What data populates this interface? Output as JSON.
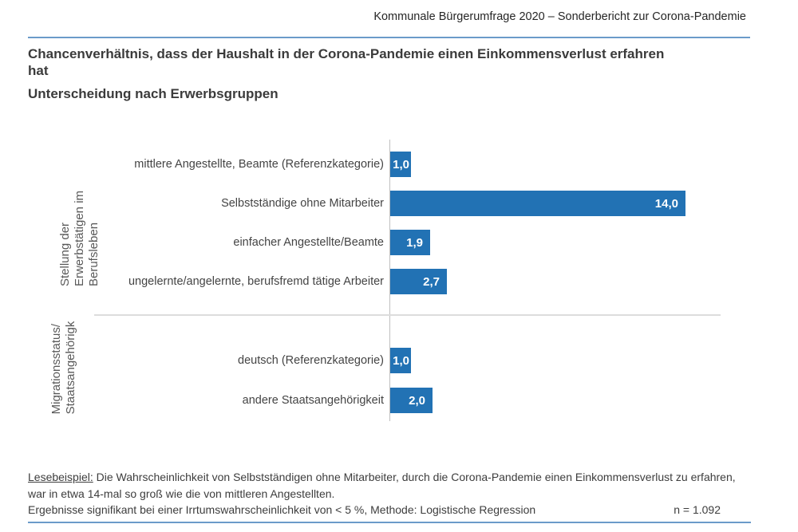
{
  "header": {
    "doc_title": "Kommunale Bürgerumfrage 2020 – Sonderbericht zur Corona-Pandemie"
  },
  "title": {
    "line1": "Chancenverhältnis, dass der Haushalt in der Corona-Pandemie einen Einkommensverlust erfahren",
    "line2": "hat",
    "subtitle": "Unterscheidung nach Erwerbsgruppen"
  },
  "chart_data": {
    "type": "bar",
    "orientation": "horizontal",
    "title": "Chancenverhältnis, dass der Haushalt in der Corona-Pandemie einen Einkommensverlust erfahren hat",
    "subtitle": "Unterscheidung nach Erwerbsgruppen",
    "xlim": [
      0,
      14.2
    ],
    "grid": false,
    "legend": false,
    "bar_color": "#2272b4",
    "decimal_style": "comma",
    "groups": [
      {
        "axis_label_lines": [
          "Stellung der",
          "Erwerbstätigen im",
          "Berufsleben"
        ],
        "rows": [
          {
            "label": "mittlere Angestellte, Beamte (Referenzkategorie)",
            "value": 1.0,
            "value_label": "1,0"
          },
          {
            "label": "Selbstständige ohne Mitarbeiter",
            "value": 14.0,
            "value_label": "14,0"
          },
          {
            "label": "einfacher Angestellte/Beamte",
            "value": 1.9,
            "value_label": "1,9"
          },
          {
            "label": "ungelernte/angelernte, berufsfremd tätige Arbeiter",
            "value": 2.7,
            "value_label": "2,7"
          }
        ]
      },
      {
        "axis_label_lines": [
          "Migrationsstatus/",
          "Staatsangehörigk"
        ],
        "rows": [
          {
            "label": "deutsch (Referenzkategorie)",
            "value": 1.0,
            "value_label": "1,0"
          },
          {
            "label": "andere Staatsangehörigkeit",
            "value": 2.0,
            "value_label": "2,0"
          }
        ]
      }
    ]
  },
  "footer": {
    "lesebeispiel_label": "Lesebeispiel:",
    "lesebeispiel_text": " Die Wahrscheinlichkeit von Selbstständigen ohne Mitarbeiter, durch die Corona-Pandemie einen Einkommensverlust zu erfahren, war in etwa 14-mal so groß wie die von mittleren Angestellten.",
    "methods_text": "Ergebnisse signifikant bei einer Irrtumswahrscheinlichkeit von < 5 %, Methode: Logistische Regression",
    "sample_size": "n = 1.092"
  }
}
